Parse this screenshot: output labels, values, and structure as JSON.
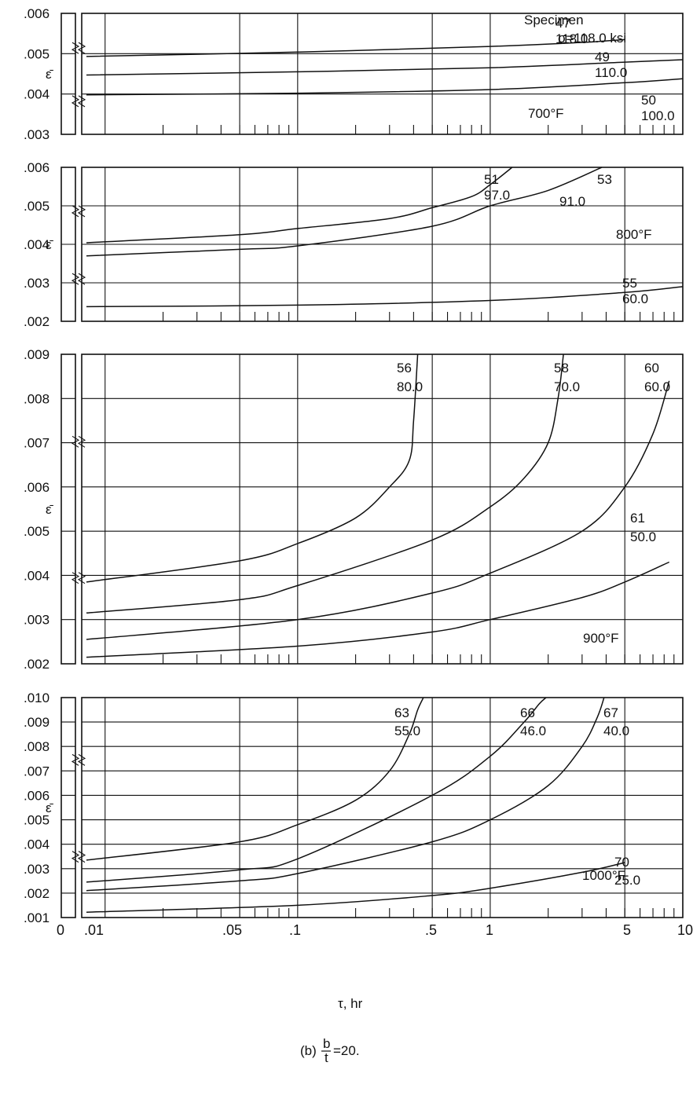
{
  "figure": {
    "x_axis_title": "τ, hr",
    "x_tick_labels": [
      "0",
      ".01",
      ".05",
      ".1",
      ".5",
      "1",
      "5",
      "10"
    ],
    "caption_prefix": "(b)",
    "caption_num": "b",
    "caption_den": "t",
    "caption_value": "=20."
  },
  "chart_data": [
    {
      "type": "line",
      "panel": "700°F",
      "temperature_label": "700°F",
      "ylabel": "ε̄",
      "ylim": [
        0.003,
        0.006
      ],
      "y_ticks": [
        ".003",
        ".004",
        ".005",
        ".006"
      ],
      "x_scale": "log (with break near 0)",
      "xlim": [
        0.008,
        10
      ],
      "header_labels": [
        "Specimen",
        "σ=118.0 ksi"
      ],
      "series": [
        {
          "name": "47",
          "stress_label": "118.0",
          "x": [
            0.008,
            0.1,
            1,
            3,
            5
          ],
          "y": [
            0.00493,
            0.00504,
            0.00518,
            0.00528,
            0.00535
          ]
        },
        {
          "name": "49",
          "stress_label": "110.0",
          "x": [
            0.008,
            0.1,
            1,
            5,
            10
          ],
          "y": [
            0.00447,
            0.00455,
            0.00465,
            0.00479,
            0.00485
          ]
        },
        {
          "name": "50",
          "stress_label": "100.0",
          "x": [
            0.008,
            0.1,
            1,
            5,
            10
          ],
          "y": [
            0.00398,
            0.00402,
            0.00411,
            0.00428,
            0.00438
          ]
        }
      ]
    },
    {
      "type": "line",
      "panel": "800°F",
      "temperature_label": "800°F",
      "ylabel": "ε̄",
      "ylim": [
        0.002,
        0.006
      ],
      "y_ticks": [
        ".002",
        ".003",
        ".004",
        ".005",
        ".006"
      ],
      "x_scale": "log (with break near 0)",
      "xlim": [
        0.008,
        10
      ],
      "series": [
        {
          "name": "51",
          "stress_label": "97.0",
          "x": [
            0.008,
            0.05,
            0.1,
            0.3,
            0.5,
            0.8,
            1.0,
            1.3
          ],
          "y": [
            0.00404,
            0.00425,
            0.00441,
            0.00467,
            0.00495,
            0.00524,
            0.00555,
            0.006
          ]
        },
        {
          "name": "53",
          "stress_label": "91.0",
          "x": [
            0.008,
            0.05,
            0.1,
            0.5,
            1,
            2,
            3.8
          ],
          "y": [
            0.0037,
            0.00387,
            0.00396,
            0.00447,
            0.005,
            0.0054,
            0.006
          ]
        },
        {
          "name": "55",
          "stress_label": "60.0",
          "x": [
            0.008,
            0.1,
            1,
            5,
            10
          ],
          "y": [
            0.00238,
            0.00242,
            0.00254,
            0.00275,
            0.0029
          ]
        }
      ]
    },
    {
      "type": "line",
      "panel": "900°F",
      "temperature_label": "900°F",
      "ylabel": "ε̄",
      "ylim": [
        0.002,
        0.009
      ],
      "y_ticks": [
        ".002",
        ".003",
        ".004",
        ".005",
        ".006",
        ".007",
        ".008",
        ".009"
      ],
      "x_scale": "log (with break near 0)",
      "xlim": [
        0.008,
        10
      ],
      "series": [
        {
          "name": "56",
          "stress_label": "80.0",
          "x": [
            0.008,
            0.05,
            0.1,
            0.2,
            0.3,
            0.38,
            0.4,
            0.42
          ],
          "y": [
            0.00385,
            0.00433,
            0.00472,
            0.0053,
            0.006,
            0.0066,
            0.0075,
            0.009
          ]
        },
        {
          "name": "58",
          "stress_label": "70.0",
          "x": [
            0.008,
            0.05,
            0.1,
            0.5,
            1,
            1.5,
            2,
            2.25,
            2.4
          ],
          "y": [
            0.00315,
            0.00345,
            0.00377,
            0.0048,
            0.00555,
            0.0062,
            0.007,
            0.008,
            0.009
          ]
        },
        {
          "name": "60",
          "stress_label": "60.0",
          "x": [
            0.008,
            0.1,
            0.5,
            1,
            3,
            5,
            7,
            8.5
          ],
          "y": [
            0.00255,
            0.003,
            0.0036,
            0.00405,
            0.005,
            0.006,
            0.0072,
            0.0084
          ]
        },
        {
          "name": "61",
          "stress_label": "50.0",
          "x": [
            0.008,
            0.1,
            0.5,
            1,
            3,
            5,
            8.5
          ],
          "y": [
            0.00215,
            0.0024,
            0.00272,
            0.003,
            0.0035,
            0.00385,
            0.0043
          ]
        }
      ]
    },
    {
      "type": "line",
      "panel": "1000°F",
      "temperature_label": "1000°F",
      "ylabel": "ε̄",
      "ylim": [
        0.001,
        0.01
      ],
      "y_ticks": [
        ".001",
        ".002",
        ".003",
        ".004",
        ".005",
        ".006",
        ".007",
        ".008",
        ".009",
        ".010"
      ],
      "x_scale": "log (with break near 0)",
      "xlim": [
        0.008,
        10
      ],
      "series": [
        {
          "name": "63",
          "stress_label": "55.0",
          "x": [
            0.008,
            0.05,
            0.1,
            0.2,
            0.3,
            0.38,
            0.42,
            0.45
          ],
          "y": [
            0.00335,
            0.0041,
            0.0048,
            0.0058,
            0.007,
            0.0085,
            0.0095,
            0.01
          ]
        },
        {
          "name": "66",
          "stress_label": "46.0",
          "x": [
            0.008,
            0.05,
            0.1,
            0.5,
            1,
            1.5,
            1.8,
            1.95
          ],
          "y": [
            0.00245,
            0.00295,
            0.0034,
            0.006,
            0.0076,
            0.009,
            0.00975,
            0.01
          ]
        },
        {
          "name": "67",
          "stress_label": "40.0",
          "x": [
            0.008,
            0.05,
            0.1,
            0.5,
            1,
            2,
            3,
            3.6,
            3.9
          ],
          "y": [
            0.0021,
            0.0025,
            0.0028,
            0.0041,
            0.005,
            0.0064,
            0.008,
            0.0092,
            0.01
          ]
        },
        {
          "name": "70",
          "stress_label": "25.0",
          "x": [
            0.008,
            0.1,
            0.5,
            1,
            3,
            5
          ],
          "y": [
            0.00122,
            0.0015,
            0.0019,
            0.0022,
            0.00285,
            0.00325
          ]
        }
      ]
    }
  ]
}
